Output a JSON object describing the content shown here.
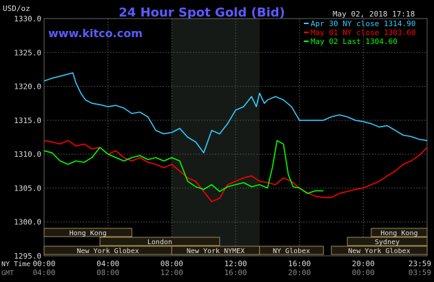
{
  "header": {
    "title": "24 Hour Spot Gold (Bid)",
    "timestamp": "May 02, 2018 17:18",
    "watermark": "www.kitco.com",
    "unit": "USD/oz"
  },
  "legend": [
    {
      "label": "Apr 30 NY close 1314.90",
      "color": "#33ccff"
    },
    {
      "label": "May 01 NY close 1303.60",
      "color": "#ff0000"
    },
    {
      "label": "May 02 Last 1304.60",
      "color": "#00ff00"
    }
  ],
  "markets": [
    {
      "name": "Hong Kong",
      "row": 0,
      "start": 0,
      "end": 5.5
    },
    {
      "name": "London",
      "row": 1,
      "start": 3.5,
      "end": 11.0
    },
    {
      "name": "New York Globex",
      "row": 2,
      "start": 0,
      "end": 8.0
    },
    {
      "name": "New York NYMEX",
      "row": 2,
      "start": 8.0,
      "end": 13.5
    },
    {
      "name": "NY Globex",
      "row": 2,
      "start": 13.5,
      "end": 17.5
    },
    {
      "name": "Hong Kong",
      "row": 0,
      "start": 20.5,
      "end": 24.0
    },
    {
      "name": "Sydney",
      "row": 1,
      "start": 19.0,
      "end": 24.0
    },
    {
      "name": "New York Globex",
      "row": 2,
      "start": 18.0,
      "end": 24.0
    }
  ],
  "axis_labels": {
    "ny_time": "NY Time",
    "gmt": "GMT"
  },
  "colors": {
    "shade": "#161a16",
    "grid": "#4a4a4a",
    "market_bar": "#1f1a10",
    "market_border": "#a08c50"
  },
  "chart_data": {
    "type": "line",
    "ylim": [
      1295.0,
      1330.0
    ],
    "xlim": [
      0,
      24
    ],
    "yticks": [
      "1295.0",
      "1300.0",
      "1305.0",
      "1310.0",
      "1315.0",
      "1320.0",
      "1325.0",
      "1330.0"
    ],
    "xticks_ny": [
      "00:00",
      "04:00",
      "08:00",
      "12:00",
      "16:00",
      "20:00",
      "23:59"
    ],
    "xticks_gmt": [
      "04:00",
      "08:00",
      "12:00",
      "16:00",
      "20:00",
      "00:00",
      "03:59"
    ],
    "shade_range": [
      8.0,
      13.5
    ],
    "series": [
      {
        "name": "Apr 30 NY close 1314.90",
        "color": "#33ccff",
        "x": [
          0,
          0.5,
          1,
          1.5,
          1.8,
          2.0,
          2.3,
          2.6,
          3.0,
          3.5,
          4.0,
          4.5,
          5.0,
          5.5,
          6.0,
          6.5,
          7.0,
          7.5,
          8.0,
          8.5,
          9.0,
          9.5,
          10.0,
          10.5,
          11.0,
          11.5,
          12.0,
          12.5,
          13.0,
          13.3,
          13.5,
          13.8,
          14.0,
          14.5,
          15.0,
          15.5,
          16.0,
          16.5,
          17.0,
          17.5,
          18.0,
          18.5,
          19.0,
          19.5,
          20.0,
          20.5,
          21.0,
          21.5,
          22.0,
          22.5,
          23.0,
          23.5,
          24.0
        ],
        "y": [
          1320.8,
          1321.2,
          1321.5,
          1321.8,
          1322.0,
          1320.5,
          1319.0,
          1318.0,
          1317.5,
          1317.3,
          1317.0,
          1317.2,
          1316.8,
          1316.0,
          1316.2,
          1315.5,
          1313.5,
          1313.0,
          1313.2,
          1313.8,
          1312.5,
          1311.8,
          1310.2,
          1313.5,
          1313.0,
          1314.5,
          1316.5,
          1317.0,
          1318.5,
          1317.0,
          1319.0,
          1317.5,
          1318.0,
          1318.5,
          1318.0,
          1317.0,
          1315.0,
          1315.0,
          1315.0,
          1315.0,
          1315.5,
          1315.8,
          1315.5,
          1315.0,
          1314.8,
          1314.5,
          1314.0,
          1314.2,
          1313.5,
          1312.8,
          1312.6,
          1312.2,
          1312.0
        ]
      },
      {
        "name": "May 01 NY close 1303.60",
        "color": "#ff0000",
        "x": [
          0,
          0.5,
          1,
          1.5,
          2.0,
          2.5,
          3.0,
          3.5,
          4.0,
          4.5,
          5.0,
          5.5,
          6.0,
          6.5,
          7.0,
          7.5,
          8.0,
          8.5,
          9.0,
          9.5,
          10.0,
          10.5,
          11.0,
          11.5,
          12.0,
          12.5,
          13.0,
          13.5,
          14.0,
          14.5,
          15.0,
          15.5,
          16.0,
          16.5,
          17.0,
          17.5,
          18.0,
          18.5,
          19.0,
          19.5,
          20.0,
          20.5,
          21.0,
          21.5,
          22.0,
          22.5,
          23.0,
          23.5,
          24.0
        ],
        "y": [
          1312.0,
          1311.8,
          1311.5,
          1312.0,
          1311.2,
          1311.5,
          1310.8,
          1311.0,
          1310.0,
          1310.5,
          1309.5,
          1309.0,
          1309.5,
          1308.8,
          1308.5,
          1308.0,
          1308.5,
          1307.5,
          1306.5,
          1306.0,
          1304.5,
          1303.0,
          1303.5,
          1305.5,
          1306.0,
          1306.5,
          1306.8,
          1306.0,
          1305.8,
          1305.5,
          1306.5,
          1306.0,
          1305.0,
          1304.3,
          1303.8,
          1303.6,
          1303.6,
          1304.2,
          1304.5,
          1304.8,
          1305.0,
          1305.5,
          1306.0,
          1306.8,
          1307.5,
          1308.5,
          1309.0,
          1309.8,
          1311.0
        ]
      },
      {
        "name": "May 02 Last 1304.60",
        "color": "#00ff00",
        "x": [
          0,
          0.5,
          1,
          1.5,
          2.0,
          2.5,
          3.0,
          3.5,
          4.0,
          4.5,
          5.0,
          5.5,
          6.0,
          6.5,
          7.0,
          7.5,
          8.0,
          8.5,
          9.0,
          9.5,
          10.0,
          10.5,
          11.0,
          11.5,
          12.0,
          12.5,
          13.0,
          13.5,
          14.0,
          14.3,
          14.6,
          15.0,
          15.3,
          15.6,
          16.0,
          16.5,
          17.0,
          17.5
        ],
        "y": [
          1310.5,
          1310.2,
          1309.0,
          1308.5,
          1309.0,
          1308.8,
          1309.5,
          1311.0,
          1310.0,
          1309.5,
          1309.0,
          1309.5,
          1309.8,
          1309.2,
          1309.5,
          1309.0,
          1309.5,
          1309.0,
          1306.0,
          1305.2,
          1304.8,
          1305.5,
          1304.5,
          1305.2,
          1305.5,
          1305.8,
          1305.2,
          1305.5,
          1305.0,
          1308.0,
          1312.0,
          1311.5,
          1307.0,
          1305.2,
          1305.0,
          1304.2,
          1304.6,
          1304.6
        ]
      }
    ]
  }
}
